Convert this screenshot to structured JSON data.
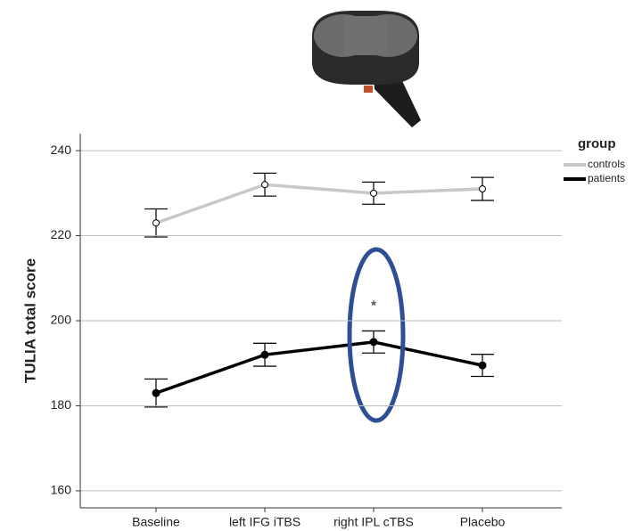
{
  "chart_data": {
    "type": "line",
    "y_label": "TULIA total score",
    "categories": [
      "Baseline",
      "left IFG iTBS",
      "right IPL cTBS",
      "Placebo"
    ],
    "series": [
      {
        "name": "controls",
        "color": "#c8c8c8",
        "marker": "open",
        "values": [
          223,
          232,
          230,
          231
        ],
        "errors": [
          3.3,
          2.7,
          2.6,
          2.7
        ]
      },
      {
        "name": "patients",
        "color": "#000000",
        "marker": "filled",
        "values": [
          183,
          192,
          195,
          189.5
        ],
        "errors": [
          3.3,
          2.7,
          2.6,
          2.6
        ]
      }
    ],
    "annotation": "*",
    "legend_title": "group",
    "ylim": [
      156,
      244
    ],
    "yticks": [
      160,
      180,
      200,
      220,
      240
    ],
    "grid": true
  }
}
